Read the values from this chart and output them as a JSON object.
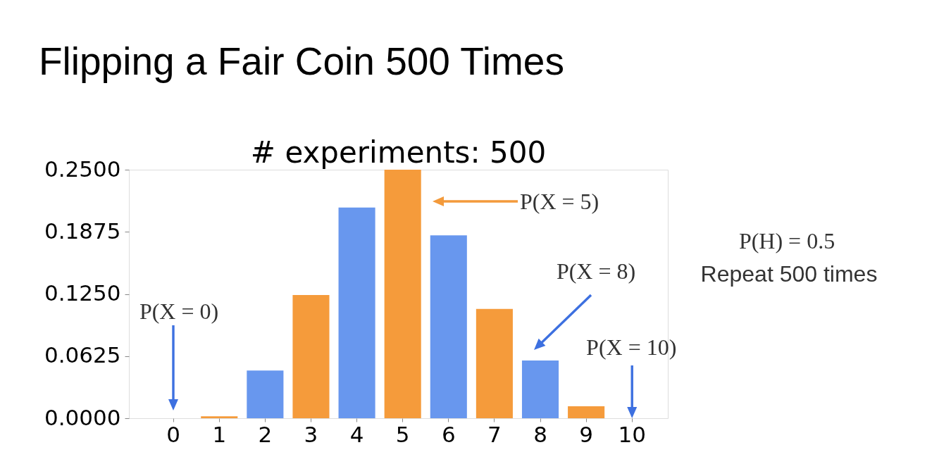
{
  "chart_data": {
    "type": "bar",
    "title": "Flipping a Fair Coin 500 Times",
    "subtitle": "# experiments: 500",
    "categories": [
      "0",
      "1",
      "2",
      "3",
      "4",
      "5",
      "6",
      "7",
      "8",
      "9",
      "10"
    ],
    "values": [
      0,
      0.002,
      0.048,
      0.124,
      0.212,
      0.25,
      0.184,
      0.11,
      0.058,
      0.012,
      0
    ],
    "colors": [
      "#6897ee",
      "#f59b3b",
      "#6897ee",
      "#f59b3b",
      "#6897ee",
      "#f59b3b",
      "#6897ee",
      "#f59b3b",
      "#6897ee",
      "#f59b3b",
      "#6897ee"
    ],
    "ylim": [
      0,
      0.25
    ],
    "yticks": [
      {
        "value": 0,
        "label": "0.0000"
      },
      {
        "value": 0.0625,
        "label": "0.0625"
      },
      {
        "value": 0.125,
        "label": "0.1250"
      },
      {
        "value": 0.1875,
        "label": "0.1875"
      },
      {
        "value": 0.25,
        "label": "0.2500"
      }
    ],
    "annotations": [
      "P(X = 0)",
      "P(X = 5)",
      "P(X = 8)",
      {
        "text": "P(X = 10)",
        "x": "10",
        "y": 0
      },
      "P(H) = 0.5",
      "Repeat 500 times"
    ]
  }
}
